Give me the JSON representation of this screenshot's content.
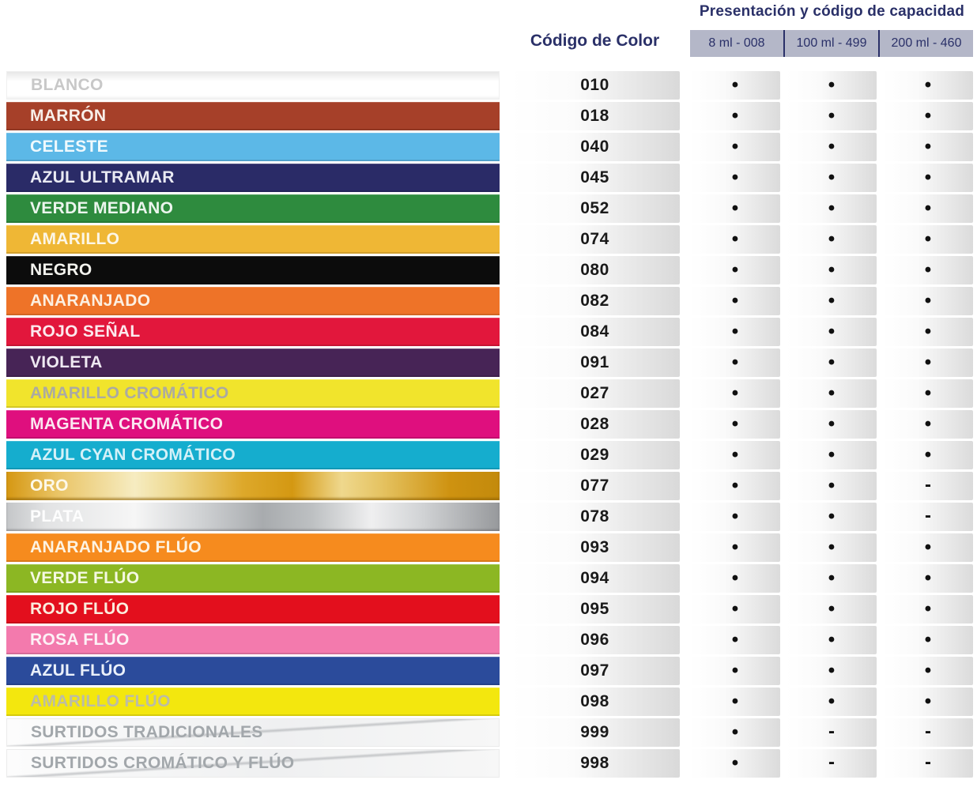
{
  "header": {
    "capacity_title": "Presentación y código de capacidad",
    "code_column_title": "Código de Color",
    "capacity_columns": [
      "8 ml - 008",
      "100 ml - 499",
      "200 ml - 460"
    ]
  },
  "colors": {
    "accent_navy": "#2A3068",
    "header_band_bg": "#B4B7C8",
    "code_text": "#1A1A1A",
    "page_bg": "#FFFFFF"
  },
  "rows": [
    {
      "label": "BLANCO",
      "code": "010",
      "type": "white",
      "bg": "#FFFFFF",
      "label_color": "#C8C8C8",
      "marks": [
        "•",
        "•",
        "•"
      ]
    },
    {
      "label": "MARRÓN",
      "code": "018",
      "type": "solid",
      "bg": "#A64029",
      "label_color": "#F8EFE9",
      "marks": [
        "•",
        "•",
        "•"
      ]
    },
    {
      "label": "CELESTE",
      "code": "040",
      "type": "solid",
      "bg": "#5CB8E7",
      "label_color": "#EFF9FD",
      "marks": [
        "•",
        "•",
        "•"
      ]
    },
    {
      "label": "AZUL ULTRAMAR",
      "code": "045",
      "type": "solid",
      "bg": "#2A2B67",
      "label_color": "#E9EAF3",
      "marks": [
        "•",
        "•",
        "•"
      ]
    },
    {
      "label": "VERDE MEDIANO",
      "code": "052",
      "type": "solid",
      "bg": "#2E8B3E",
      "label_color": "#EBF5ED",
      "marks": [
        "•",
        "•",
        "•"
      ]
    },
    {
      "label": "AMARILLO",
      "code": "074",
      "type": "solid",
      "bg": "#EFB735",
      "label_color": "#FCF6E6",
      "marks": [
        "•",
        "•",
        "•"
      ]
    },
    {
      "label": "NEGRO",
      "code": "080",
      "type": "solid",
      "bg": "#0C0C0C",
      "label_color": "#F2F2ED",
      "marks": [
        "•",
        "•",
        "•"
      ]
    },
    {
      "label": "ANARANJADO",
      "code": "082",
      "type": "solid",
      "bg": "#EE7328",
      "label_color": "#FCEFE1",
      "marks": [
        "•",
        "•",
        "•"
      ]
    },
    {
      "label": "ROJO SEÑAL",
      "code": "084",
      "type": "solid",
      "bg": "#E2173C",
      "label_color": "#FCE9ED",
      "marks": [
        "•",
        "•",
        "•"
      ]
    },
    {
      "label": "VIOLETA",
      "code": "091",
      "type": "solid",
      "bg": "#472456",
      "label_color": "#EFE9F2",
      "marks": [
        "•",
        "•",
        "•"
      ]
    },
    {
      "label": "AMARILLO CROMÁTICO",
      "code": "027",
      "type": "solid",
      "bg": "#F1E42C",
      "label_color": "#ABAAA2",
      "marks": [
        "•",
        "•",
        "•"
      ]
    },
    {
      "label": "MAGENTA CROMÁTICO",
      "code": "028",
      "type": "solid",
      "bg": "#DF0F7E",
      "label_color": "#FBE7F1",
      "marks": [
        "•",
        "•",
        "•"
      ]
    },
    {
      "label": "AZUL CYAN CROMÁTICO",
      "code": "029",
      "type": "solid",
      "bg": "#15ADCE",
      "label_color": "#D4F1F8",
      "marks": [
        "•",
        "•",
        "•"
      ]
    },
    {
      "label": "ORO",
      "code": "077",
      "type": "gold",
      "bg": "",
      "label_color": "#FDF8E8",
      "marks": [
        "•",
        "•",
        "-"
      ]
    },
    {
      "label": "PLATA",
      "code": "078",
      "type": "silver",
      "bg": "",
      "label_color": "#FDFDFD",
      "marks": [
        "•",
        "•",
        "-"
      ]
    },
    {
      "label": "ANARANJADO FLÚO",
      "code": "093",
      "type": "solid",
      "bg": "#F68B1E",
      "label_color": "#FDF3E2",
      "marks": [
        "•",
        "•",
        "•"
      ]
    },
    {
      "label": "VERDE FLÚO",
      "code": "094",
      "type": "solid",
      "bg": "#8CB723",
      "label_color": "#F5F8E2",
      "marks": [
        "•",
        "•",
        "•"
      ]
    },
    {
      "label": "ROJO FLÚO",
      "code": "095",
      "type": "solid",
      "bg": "#E30F1D",
      "label_color": "#FBEDDD",
      "marks": [
        "•",
        "•",
        "•"
      ]
    },
    {
      "label": "ROSA FLÚO",
      "code": "096",
      "type": "solid",
      "bg": "#F37AAD",
      "label_color": "#FDF1F6",
      "marks": [
        "•",
        "•",
        "•"
      ]
    },
    {
      "label": "AZUL FLÚO",
      "code": "097",
      "type": "solid",
      "bg": "#2B4B9B",
      "label_color": "#EAF0FA",
      "marks": [
        "•",
        "•",
        "•"
      ]
    },
    {
      "label": "AMARILLO FLÚO",
      "code": "098",
      "type": "solid",
      "bg": "#F3E70E",
      "label_color": "#BCBCA5",
      "marks": [
        "•",
        "•",
        "•"
      ]
    },
    {
      "label": "SURTIDOS TRADICIONALES",
      "code": "999",
      "type": "assorted",
      "bg": "",
      "label_color": "#A2A7AB",
      "marks": [
        "•",
        "-",
        "-"
      ]
    },
    {
      "label": "SURTIDOS CROMÁTICO Y FLÚO",
      "code": "998",
      "type": "assorted",
      "bg": "",
      "label_color": "#A2A7AB",
      "marks": [
        "•",
        "-",
        "-"
      ]
    }
  ]
}
